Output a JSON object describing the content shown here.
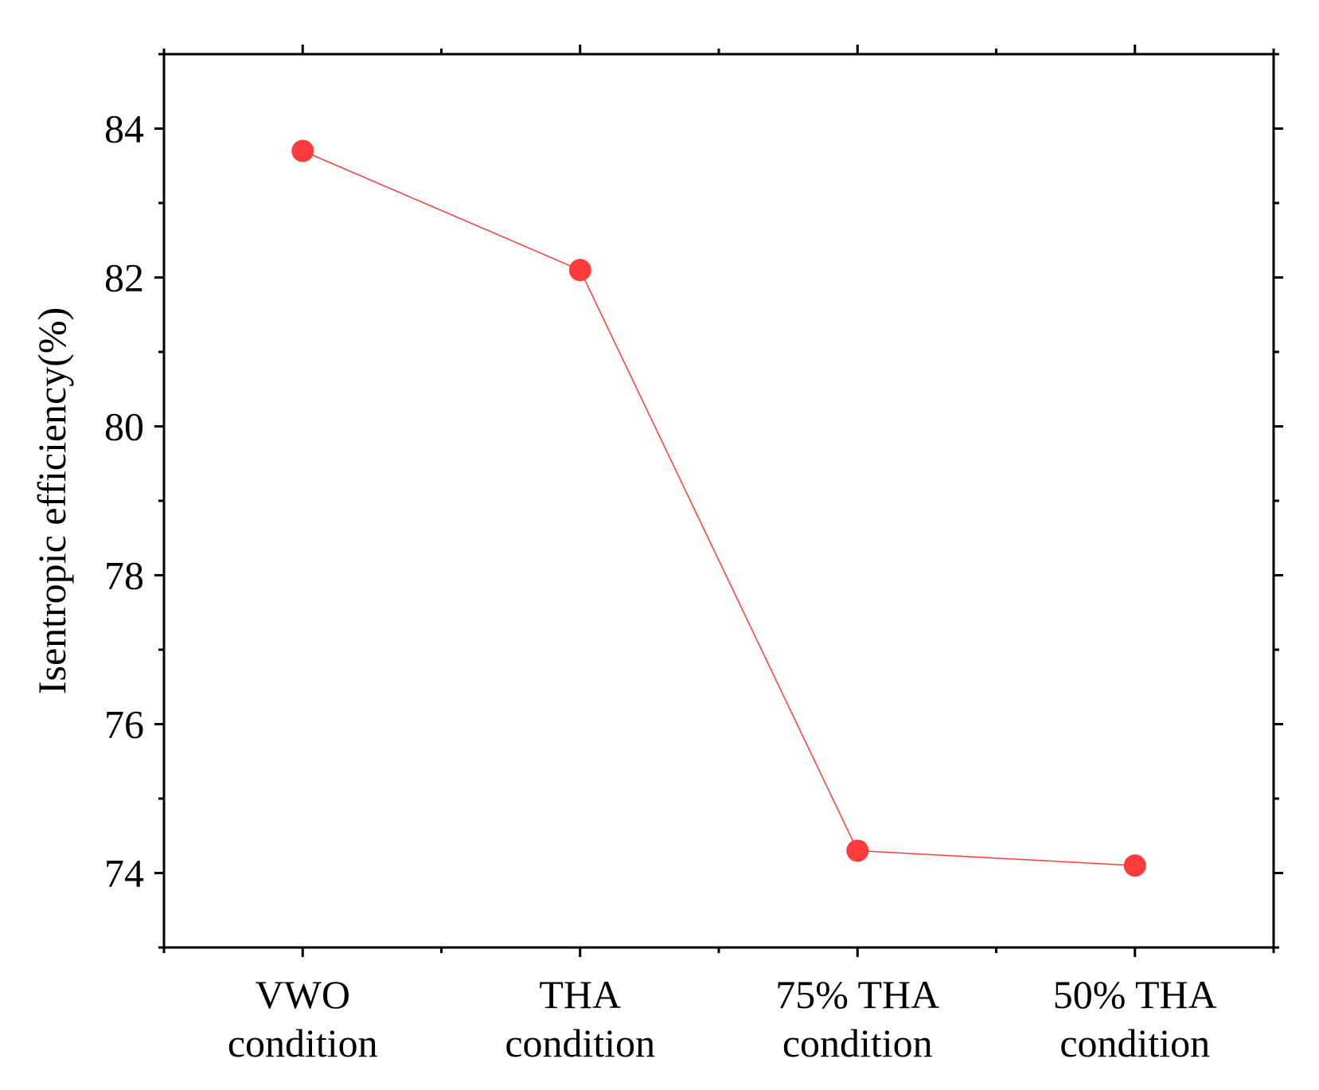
{
  "chart_data": {
    "type": "line",
    "title": "",
    "xlabel": "",
    "ylabel": "Isentropic efficiency(%)",
    "categories": [
      [
        "VWO",
        "condition"
      ],
      [
        "THA",
        "condition"
      ],
      [
        "75% THA",
        "condition"
      ],
      [
        "50% THA",
        "condition"
      ]
    ],
    "series": [
      {
        "name": "Isentropic efficiency",
        "values": [
          83.7,
          82.1,
          74.3,
          74.1
        ],
        "color": "#ff3b3b",
        "marker": "circle"
      }
    ],
    "ylim": [
      73,
      85
    ],
    "yticks": [
      74,
      76,
      78,
      80,
      82,
      84
    ],
    "ytick_labels": [
      "74",
      "76",
      "78",
      "80",
      "82",
      "84"
    ],
    "grid": false,
    "legend": "none"
  }
}
